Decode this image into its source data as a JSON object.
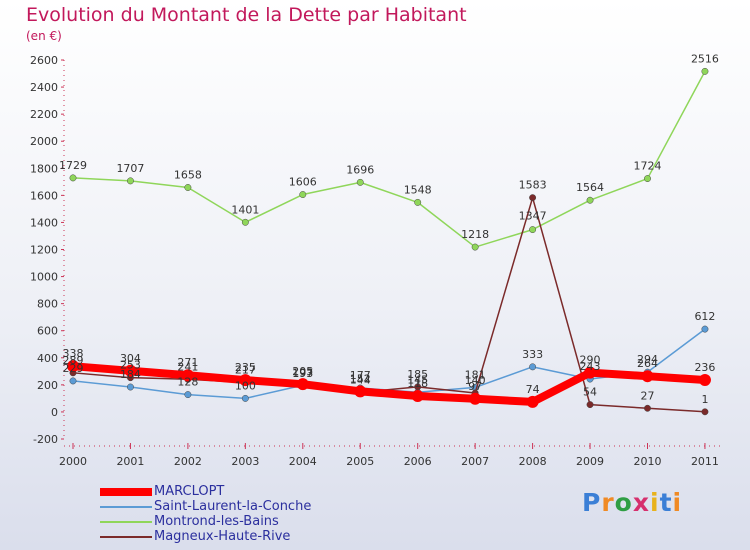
{
  "title": "Evolution du Montant de la Dette par Habitant",
  "subtitle": "(en €)",
  "logo": "Proxiti",
  "chart_data": {
    "type": "line",
    "title": "Evolution du Montant de la Dette par Habitant",
    "ylabel": "(en €)",
    "xlabel": "",
    "categories": [
      "2000",
      "2001",
      "2002",
      "2003",
      "2004",
      "2005",
      "2006",
      "2007",
      "2008",
      "2009",
      "2010",
      "2011"
    ],
    "ylim": [
      -200,
      2600
    ],
    "yticks": [
      -200,
      0,
      200,
      400,
      600,
      800,
      1000,
      1200,
      1400,
      1600,
      1800,
      2000,
      2200,
      2400,
      2600
    ],
    "grid": false,
    "legend_position": "bottom-left",
    "series": [
      {
        "name": "MARCLOPT",
        "color": "#ff0000",
        "values": [
          338,
          304,
          271,
          235,
          205,
          152,
          118,
          97,
          74,
          290,
          264,
          236
        ]
      },
      {
        "name": "Saint-Laurent-la-Conche",
        "color": "#5b9bd5",
        "values": [
          229,
          184,
          128,
          100,
          197,
          177,
          145,
          181,
          333,
          243,
          294,
          612
        ]
      },
      {
        "name": "Montrond-les-Bains",
        "color": "#8fd65a",
        "values": [
          1729,
          1707,
          1658,
          1401,
          1606,
          1696,
          1548,
          1218,
          1347,
          1564,
          1724,
          2516
        ]
      },
      {
        "name": "Magneux-Haute-Rive",
        "color": "#7b2a2a",
        "values": [
          289,
          253,
          241,
          217,
          193,
          144,
          185,
          140,
          1583,
          54,
          27,
          1
        ]
      }
    ]
  }
}
